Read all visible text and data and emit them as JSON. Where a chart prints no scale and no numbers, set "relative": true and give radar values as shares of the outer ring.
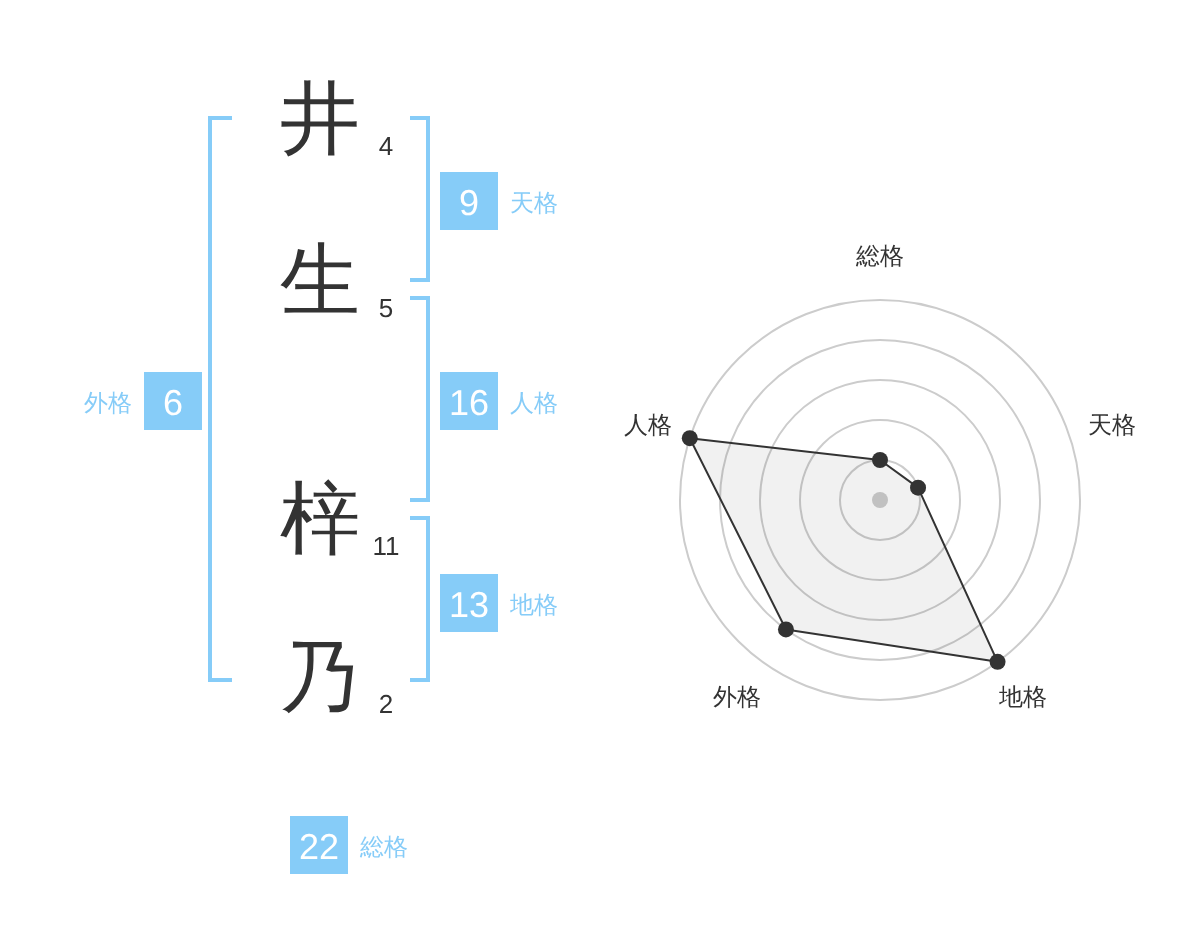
{
  "chart_data": [
    {
      "type": "other",
      "categories": [
        "井",
        "生",
        "梓",
        "乃"
      ],
      "values": [
        4,
        5,
        11,
        2
      ],
      "data_labels": true,
      "color": "#86ccf8",
      "annotations": [
        "9",
        "天格",
        "16",
        "人格",
        "13",
        "地格",
        "6",
        "外格",
        "22",
        "総格"
      ]
    },
    {
      "type": "radar",
      "categories": [
        "総格",
        "天格",
        "地格",
        "外格",
        "人格"
      ],
      "relative": true,
      "grid": true,
      "marker": "circle",
      "series": [
        {
          "color": "#333333",
          "values": [
            0.2,
            0.2,
            1.0,
            0.8,
            1.0
          ]
        }
      ]
    }
  ]
}
